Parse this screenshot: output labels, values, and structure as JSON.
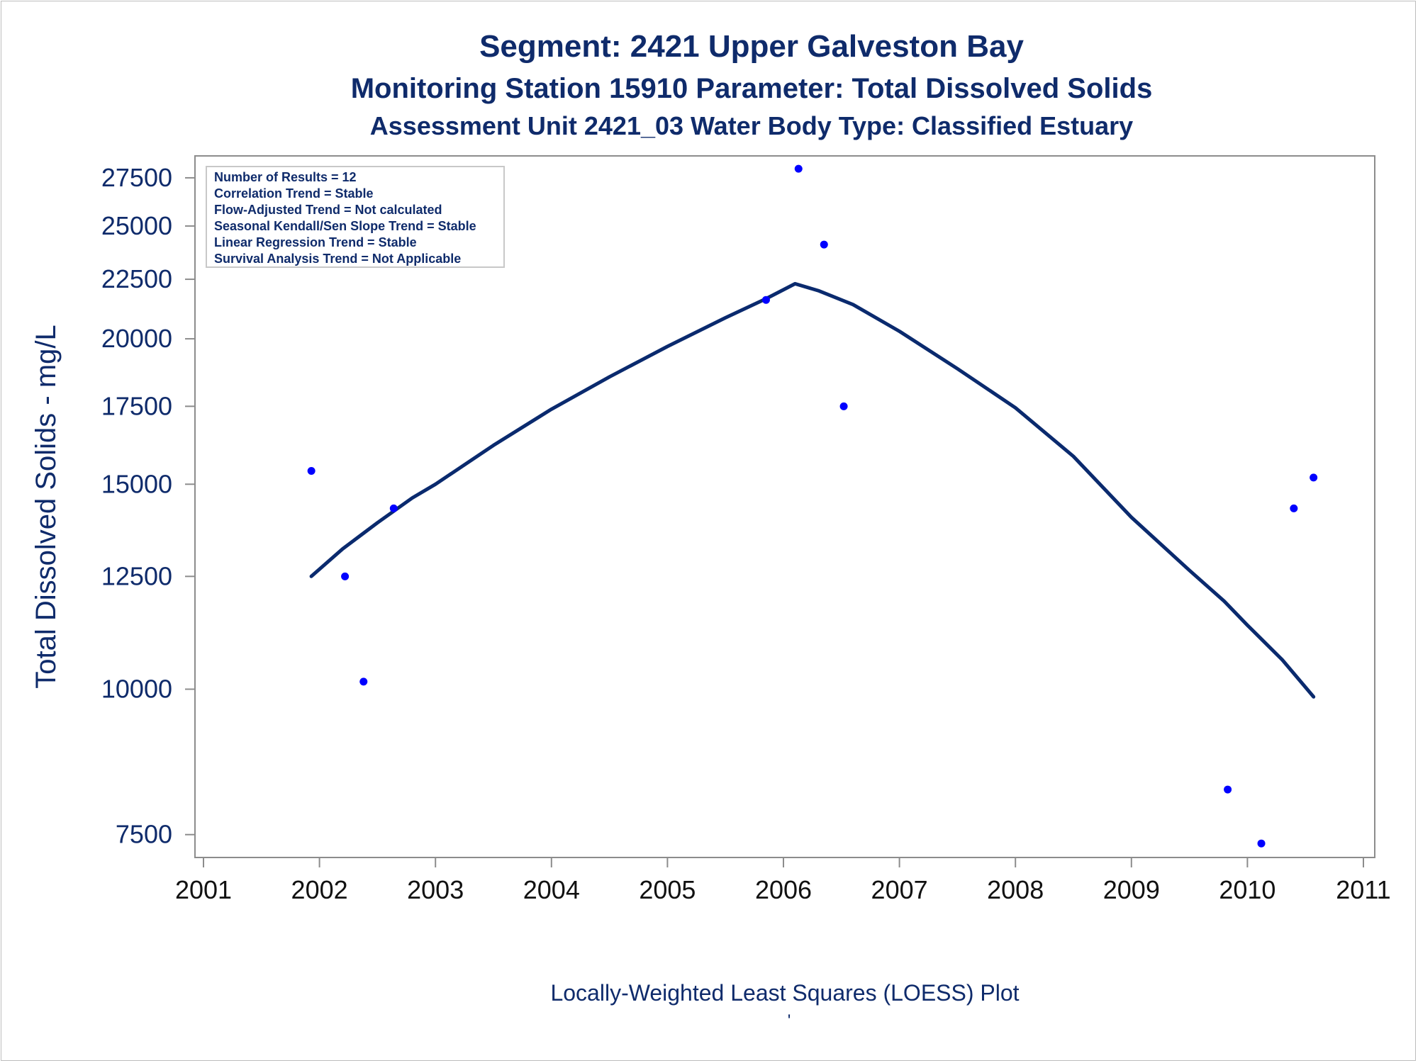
{
  "titles": {
    "line1": "Segment: 2421  Upper Galveston Bay",
    "line2": "Monitoring Station 15910 Parameter: Total Dissolved Solids",
    "line3": "Assessment Unit 2421_03   Water Body Type: Classified Estuary"
  },
  "stats_box": [
    "Number of Results = 12",
    "Correlation Trend = Stable",
    "Flow-Adjusted Trend = Not calculated",
    "Seasonal Kendall/Sen Slope Trend = Stable",
    "Linear Regression Trend = Stable",
    "Survival Analysis Trend = Not Applicable"
  ],
  "footer": {
    "caption": "Locally-Weighted Least Squares (LOESS) Plot",
    "mark": "'"
  },
  "colors": {
    "points": "#0000ff",
    "curve": "#0a2a6e",
    "text": "#0f2b6b",
    "axis": "#8c8c8c"
  },
  "chart_data": {
    "type": "scatter",
    "title": "Segment: 2421  Upper Galveston Bay",
    "xlabel": "",
    "ylabel": "Total Dissolved Solids - mg/L",
    "y_scale": "log",
    "xlim": [
      2001,
      2011
    ],
    "ylim": [
      7300,
      28200
    ],
    "x_ticks": [
      2001,
      2002,
      2003,
      2004,
      2005,
      2006,
      2007,
      2008,
      2009,
      2010,
      2011
    ],
    "y_ticks": [
      7500,
      10000,
      12500,
      15000,
      17500,
      20000,
      22500,
      25000,
      27500
    ],
    "grid": false,
    "series": [
      {
        "kind": "points",
        "x": [
          2001.93,
          2002.22,
          2002.38,
          2002.64,
          2005.85,
          2006.13,
          2006.35,
          2006.52,
          2009.83,
          2010.12,
          2010.4,
          2010.57
        ],
        "y": [
          15400,
          12500,
          10150,
          14300,
          21600,
          28000,
          24100,
          17500,
          8200,
          7370,
          14300,
          15200
        ]
      },
      {
        "kind": "loess-curve",
        "x": [
          2001.93,
          2002.2,
          2002.5,
          2002.8,
          2003.0,
          2003.5,
          2004.0,
          2004.5,
          2005.0,
          2005.5,
          2005.85,
          2006.1,
          2006.3,
          2006.6,
          2007.0,
          2007.5,
          2008.0,
          2008.5,
          2009.0,
          2009.5,
          2009.8,
          2010.0,
          2010.3,
          2010.57
        ],
        "y": [
          12500,
          13200,
          13900,
          14600,
          15000,
          16200,
          17400,
          18550,
          19700,
          20850,
          21650,
          22300,
          22000,
          21400,
          20300,
          18850,
          17450,
          15850,
          14050,
          12650,
          11900,
          11350,
          10600,
          9850
        ]
      }
    ]
  }
}
